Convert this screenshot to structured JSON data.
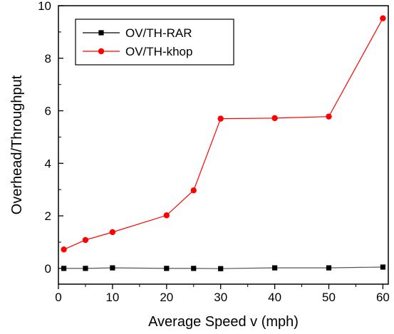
{
  "chart_data": {
    "type": "line",
    "title": "",
    "xlabel": "Average Speed v (mph)",
    "ylabel": "Overhead/Throughput",
    "x": [
      1,
      5,
      10,
      20,
      25,
      30,
      40,
      50,
      60
    ],
    "xlim": [
      0,
      61
    ],
    "ylim": [
      -0.6,
      10
    ],
    "xticks": [
      0,
      10,
      20,
      30,
      40,
      50,
      60
    ],
    "yticks": [
      0,
      2,
      4,
      6,
      8,
      10
    ],
    "xtick_labels": [
      "0",
      "10",
      "20",
      "30",
      "40",
      "50",
      "60"
    ],
    "ytick_labels": [
      "0",
      "2",
      "4",
      "6",
      "8",
      "10"
    ],
    "grid": false,
    "legend_position": "top-left",
    "series": [
      {
        "name": "OV/TH-RAR",
        "marker": "square",
        "color": "#000000",
        "values": [
          0.0,
          0.0,
          0.02,
          0.0,
          0.0,
          -0.01,
          0.02,
          0.02,
          0.05
        ]
      },
      {
        "name": "OV/TH-khop",
        "marker": "circle",
        "color": "#ff0000",
        "values": [
          0.72,
          1.08,
          1.38,
          2.02,
          2.97,
          5.7,
          5.72,
          5.78,
          9.52
        ]
      }
    ]
  }
}
